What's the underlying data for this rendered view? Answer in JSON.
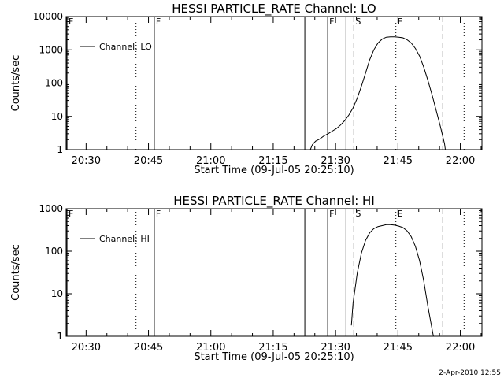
{
  "footer": {
    "timestamp": "2-Apr-2010 12:55"
  },
  "chart_data": [
    {
      "type": "line",
      "title": "HESSI PARTICLE_RATE Channel: LO",
      "xlabel": "Start Time (09-Jul-05 20:25:10)",
      "ylabel": "Counts/sec",
      "x_unit": "minutes from 20:25:10",
      "xlim": [
        0,
        100
      ],
      "ylim": [
        1,
        10000
      ],
      "yscale": "log",
      "xticks": [
        {
          "label": "20:30",
          "value": 4.8
        },
        {
          "label": "20:45",
          "value": 19.8
        },
        {
          "label": "21:00",
          "value": 34.8
        },
        {
          "label": "21:15",
          "value": 49.8
        },
        {
          "label": "21:30",
          "value": 64.8
        },
        {
          "label": "21:45",
          "value": 79.8
        },
        {
          "label": "22:00",
          "value": 94.8
        }
      ],
      "yticks": [
        {
          "label": "1",
          "value": 1
        },
        {
          "label": "10",
          "value": 10
        },
        {
          "label": "100",
          "value": 100
        },
        {
          "label": "1000",
          "value": 1000
        },
        {
          "label": "10000",
          "value": 10000
        }
      ],
      "legend": {
        "label": "Channel: LO",
        "position": "top-left"
      },
      "markers": [
        {
          "label": "F",
          "x": 0.2,
          "style": "solid"
        },
        {
          "label": "",
          "x": 16.8,
          "style": "dotted"
        },
        {
          "label": "F",
          "x": 21.2,
          "style": "solid"
        },
        {
          "label": "",
          "x": 57.4,
          "style": "solid"
        },
        {
          "label": "F",
          "x": 62.9,
          "style": "solid"
        },
        {
          "label": "S",
          "x": 69.2,
          "style": "dashed"
        },
        {
          "label": "",
          "x": 67.3,
          "style": "solid"
        },
        {
          "label": "E",
          "x": 79.3,
          "style": "dotted"
        },
        {
          "label": "",
          "x": 90.6,
          "style": "dashed"
        },
        {
          "label": "",
          "x": 95.7,
          "style": "dotted"
        }
      ],
      "series": [
        {
          "x": [
            58.4,
            59.2,
            60,
            61,
            62,
            63,
            64,
            65,
            66,
            67,
            68,
            69,
            70,
            71,
            72,
            73,
            74,
            75,
            76,
            77,
            78,
            79,
            80,
            81,
            82,
            83,
            84,
            85,
            86,
            87,
            88,
            89,
            90,
            91,
            91.3
          ],
          "y": [
            0.8,
            1.4,
            1.8,
            2.1,
            2.6,
            3.0,
            3.6,
            4.3,
            5.5,
            7.5,
            11,
            18,
            35,
            80,
            200,
            500,
            1000,
            1600,
            2100,
            2400,
            2450,
            2450,
            2400,
            2300,
            2000,
            1600,
            1100,
            650,
            300,
            120,
            45,
            15,
            5,
            1.5,
            0.8
          ]
        }
      ]
    },
    {
      "type": "line",
      "title": "HESSI PARTICLE_RATE Channel: HI",
      "xlabel": "Start Time (09-Jul-05 20:25:10)",
      "ylabel": "Counts/sec",
      "x_unit": "minutes from 20:25:10",
      "xlim": [
        0,
        100
      ],
      "ylim": [
        1,
        1000
      ],
      "yscale": "log",
      "xticks": [
        {
          "label": "20:30",
          "value": 4.8
        },
        {
          "label": "20:45",
          "value": 19.8
        },
        {
          "label": "21:00",
          "value": 34.8
        },
        {
          "label": "21:15",
          "value": 49.8
        },
        {
          "label": "21:30",
          "value": 64.8
        },
        {
          "label": "21:45",
          "value": 79.8
        },
        {
          "label": "22:00",
          "value": 94.8
        }
      ],
      "yticks": [
        {
          "label": "1",
          "value": 1
        },
        {
          "label": "10",
          "value": 10
        },
        {
          "label": "100",
          "value": 100
        },
        {
          "label": "1000",
          "value": 1000
        }
      ],
      "legend": {
        "label": "Channel: HI",
        "position": "top-left"
      },
      "markers": [
        {
          "label": "F",
          "x": 0.2,
          "style": "solid"
        },
        {
          "label": "",
          "x": 16.8,
          "style": "dotted"
        },
        {
          "label": "F",
          "x": 21.2,
          "style": "solid"
        },
        {
          "label": "",
          "x": 57.4,
          "style": "solid"
        },
        {
          "label": "F",
          "x": 62.9,
          "style": "solid"
        },
        {
          "label": "S",
          "x": 69.2,
          "style": "dashed"
        },
        {
          "label": "",
          "x": 67.3,
          "style": "solid"
        },
        {
          "label": "E",
          "x": 79.3,
          "style": "dotted"
        },
        {
          "label": "",
          "x": 90.6,
          "style": "dashed"
        },
        {
          "label": "",
          "x": 95.7,
          "style": "dotted"
        }
      ],
      "series": [
        {
          "x": [
            68.6,
            69,
            70,
            71,
            72,
            73,
            74,
            75,
            76,
            77,
            78,
            79,
            80,
            81,
            82,
            83,
            84,
            85,
            86,
            87,
            88,
            88.5
          ],
          "y": [
            1.8,
            6,
            30,
            90,
            180,
            270,
            340,
            380,
            400,
            420,
            420,
            410,
            390,
            360,
            300,
            220,
            130,
            60,
            20,
            5,
            1.5,
            0.8
          ]
        }
      ]
    }
  ]
}
